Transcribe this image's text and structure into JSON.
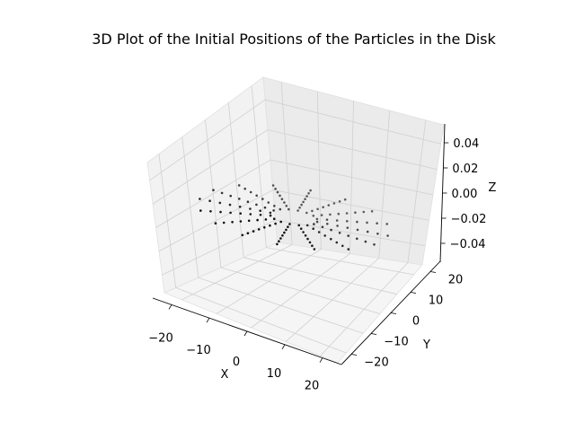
{
  "chart_data": {
    "type": "scatter",
    "projection": "3d",
    "title": "3D Plot of the Initial Positions of the Particles in the Disk",
    "xlabel": "X",
    "ylabel": "Y",
    "zlabel": "Z",
    "xlim": [
      -25,
      25
    ],
    "ylim": [
      -25,
      25
    ],
    "zlim": [
      -0.055,
      0.055
    ],
    "xticks": [
      "−20",
      "−10",
      "0",
      "10",
      "20"
    ],
    "xtick_values": [
      -20,
      -10,
      0,
      10,
      20
    ],
    "yticks": [
      "−20",
      "−10",
      "0",
      "10",
      "20"
    ],
    "ytick_values": [
      -20,
      -10,
      0,
      10,
      20
    ],
    "zticks": [
      "−0.04",
      "−0.02",
      "0.00",
      "0.02",
      "0.04"
    ],
    "ztick_values": [
      -0.04,
      -0.02,
      0.0,
      0.02,
      0.04
    ],
    "grid": true,
    "marker_color": "#000000",
    "description_of_points": {
      "arms": 16,
      "points_per_arm": 8,
      "radius_range": [
        5,
        20
      ],
      "z": 0
    }
  }
}
